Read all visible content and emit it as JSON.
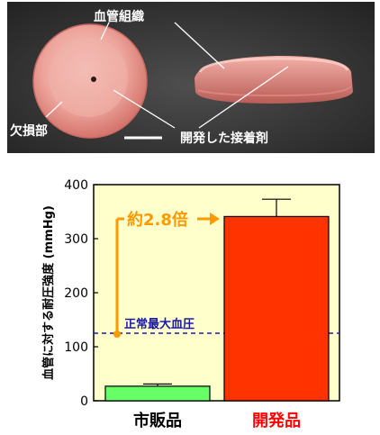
{
  "photo": {
    "labels": {
      "tissue": "血管組織",
      "defect": "欠損部",
      "adhesive": "開発した接着剤"
    }
  },
  "chart_data": {
    "type": "bar",
    "ylabel": "血管に対する耐圧強度 (mmHg)",
    "ylim": [
      0,
      400
    ],
    "yticks": [
      0,
      100,
      200,
      300,
      400
    ],
    "categories": [
      "市販品",
      "開発品"
    ],
    "values": [
      27,
      341
    ],
    "error_upper": [
      31,
      373
    ],
    "bar_colors": [
      "#66ff66",
      "#ff3300"
    ],
    "category_colors": [
      "#000000",
      "#ff0000"
    ],
    "plot_background": "#ffffcc",
    "reference_line": {
      "value": 125,
      "label": "正常最大血圧",
      "color": "#1a1aa6"
    },
    "annotation": {
      "text": "約2.8倍",
      "color": "#ff9900"
    }
  }
}
